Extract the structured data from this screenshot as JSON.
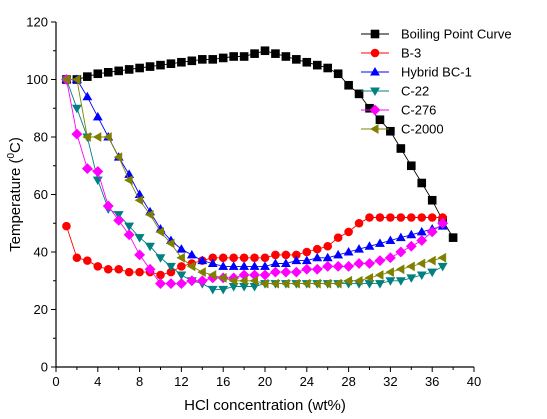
{
  "chart_data": {
    "type": "line",
    "xlabel": "HCl concentration (wt%)",
    "ylabel_main": "Temperature (",
    "ylabel_sup": "0",
    "ylabel_end": "C)",
    "xlim": [
      0,
      40
    ],
    "ylim": [
      0,
      120
    ],
    "xticks": [
      0,
      4,
      8,
      12,
      16,
      20,
      24,
      28,
      32,
      36,
      40
    ],
    "yticks": [
      0,
      20,
      40,
      60,
      80,
      100,
      120
    ],
    "grid": false,
    "legend_position": "top-right",
    "series": [
      {
        "name": "Boiling Point Curve",
        "color": "#000000",
        "marker": "square",
        "x": [
          1,
          2,
          3,
          4,
          5,
          6,
          7,
          8,
          9,
          10,
          11,
          12,
          13,
          14,
          15,
          16,
          17,
          18,
          19,
          20,
          21,
          22,
          23,
          24,
          25,
          26,
          27,
          28,
          29,
          30,
          31,
          32,
          33,
          34,
          35,
          36,
          37,
          38
        ],
        "y": [
          100,
          100,
          101,
          102,
          102.5,
          103,
          103.5,
          104,
          104.5,
          105,
          105.5,
          106,
          106.5,
          107,
          107,
          107.5,
          108,
          108,
          109,
          110,
          109,
          108,
          107,
          106,
          105,
          104,
          102,
          98,
          95,
          90,
          86,
          82,
          76,
          70,
          64,
          58,
          51,
          45
        ]
      },
      {
        "name": "B-3",
        "color": "#ff0000",
        "marker": "circle",
        "x": [
          1,
          2,
          3,
          4,
          5,
          6,
          7,
          8,
          9,
          10,
          11,
          12,
          13,
          14,
          15,
          16,
          17,
          18,
          19,
          20,
          21,
          22,
          23,
          24,
          25,
          26,
          27,
          28,
          29,
          30,
          31,
          32,
          33,
          34,
          35,
          36,
          37
        ],
        "y": [
          49,
          38,
          37,
          35,
          34,
          34,
          33,
          33,
          33,
          32,
          33,
          35,
          36,
          37,
          38,
          38,
          38,
          38,
          38,
          38,
          39,
          39,
          39,
          40,
          41,
          42,
          45,
          47,
          50,
          52,
          52,
          52,
          52,
          52,
          52,
          52,
          52
        ]
      },
      {
        "name": "Hybrid BC-1",
        "color": "#0000ff",
        "marker": "triangle-up",
        "x": [
          1,
          2,
          3,
          4,
          5,
          6,
          7,
          8,
          9,
          10,
          11,
          12,
          13,
          14,
          15,
          16,
          17,
          18,
          19,
          20,
          21,
          22,
          23,
          24,
          25,
          26,
          27,
          28,
          29,
          30,
          31,
          32,
          33,
          34,
          35,
          36,
          37
        ],
        "y": [
          100,
          100,
          94,
          87,
          80,
          73,
          67,
          60,
          54,
          48,
          44,
          41,
          39,
          37,
          36,
          35,
          35,
          35,
          35,
          35,
          36,
          36,
          37,
          37,
          38,
          38,
          39,
          40,
          41,
          42,
          43,
          44,
          45,
          46,
          47,
          48,
          49
        ]
      },
      {
        "name": "C-22",
        "color": "#008080",
        "marker": "triangle-down",
        "x": [
          1,
          2,
          3,
          4,
          5,
          6,
          7,
          8,
          9,
          10,
          11,
          12,
          13,
          14,
          15,
          16,
          17,
          18,
          19,
          20,
          21,
          22,
          23,
          24,
          25,
          26,
          27,
          28,
          29,
          30,
          31,
          32,
          33,
          34,
          35,
          36,
          37
        ],
        "y": [
          100,
          90,
          80,
          65,
          55,
          53,
          49,
          45,
          42,
          38,
          35,
          32,
          30,
          29,
          27,
          27,
          28,
          28,
          28,
          29,
          29,
          29,
          29,
          29,
          29,
          29,
          29,
          29,
          29,
          29,
          29,
          30,
          30,
          31,
          32,
          33,
          35
        ]
      },
      {
        "name": "C-276",
        "color": "#ff00ff",
        "marker": "diamond",
        "x": [
          1,
          2,
          3,
          4,
          5,
          6,
          7,
          8,
          9,
          10,
          11,
          12,
          13,
          14,
          15,
          16,
          17,
          18,
          19,
          20,
          21,
          22,
          23,
          24,
          25,
          26,
          27,
          28,
          29,
          30,
          31,
          32,
          33,
          34,
          35,
          36,
          37
        ],
        "y": [
          100,
          81,
          69,
          68,
          56,
          51,
          46,
          39,
          34,
          29,
          29,
          29,
          30,
          30,
          31,
          31,
          31,
          32,
          32,
          32,
          33,
          33,
          33,
          34,
          34,
          35,
          35,
          35,
          36,
          36,
          37,
          38,
          40,
          42,
          44,
          47,
          50
        ]
      },
      {
        "name": "C-2000",
        "color": "#808000",
        "marker": "triangle-left",
        "x": [
          1,
          2,
          3,
          4,
          5,
          6,
          7,
          8,
          9,
          10,
          11,
          12,
          13,
          14,
          15,
          16,
          17,
          18,
          19,
          20,
          21,
          22,
          23,
          24,
          25,
          26,
          27,
          28,
          29,
          30,
          31,
          32,
          33,
          34,
          35,
          36,
          37
        ],
        "y": [
          100,
          100,
          80,
          80,
          80,
          73,
          65,
          58,
          53,
          47,
          43,
          38,
          35,
          33,
          32,
          31,
          30,
          30,
          30,
          29,
          29,
          29,
          29,
          29,
          29,
          29,
          29,
          30,
          30,
          31,
          32,
          33,
          34,
          35,
          36,
          37,
          38
        ]
      }
    ]
  }
}
